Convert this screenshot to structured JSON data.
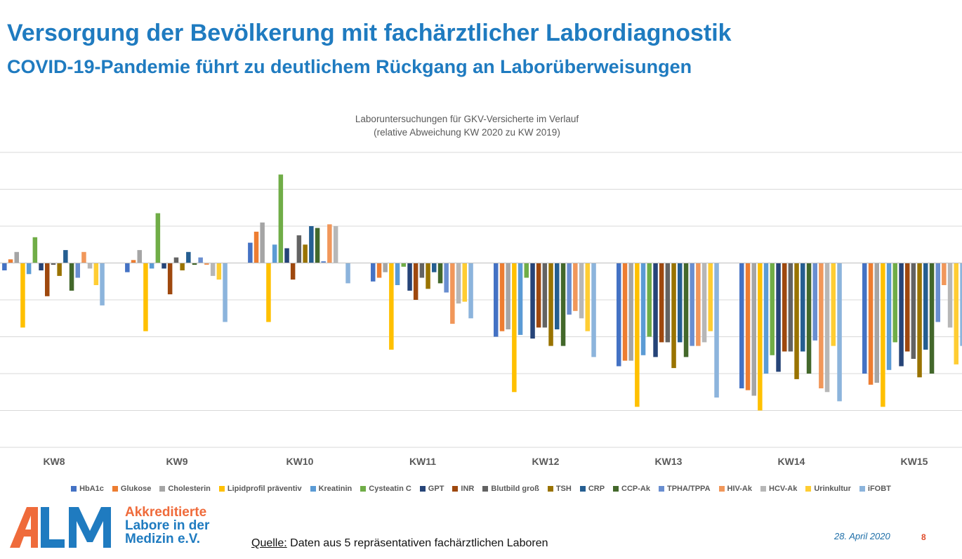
{
  "slide": {
    "title": "Versorgung der Bevölkerung mit fachärztlicher Labordiagnostik",
    "subtitle": "COVID-19-Pandemie führt zu deutlichem Rückgang an Laborüberweisungen"
  },
  "chart_data": {
    "type": "bar",
    "title_line1": "Laboruntersuchungen für GKV-Versicherte im Verlauf",
    "title_line2": "(relative Abweichung KW 2020 zu KW 2019)",
    "categories": [
      "KW8",
      "KW9",
      "KW10",
      "KW11",
      "KW12",
      "KW13",
      "KW14",
      "KW15"
    ],
    "ylim": [
      -50,
      30
    ],
    "gridlines": true,
    "legend_position": "bottom",
    "series": [
      {
        "name": "HbA1c",
        "color": "#4472c4",
        "values": [
          -2,
          -2.5,
          5.5,
          -5,
          -20,
          -28,
          -34,
          -30
        ]
      },
      {
        "name": "Glukose",
        "color": "#ed7d31",
        "values": [
          1,
          0.8,
          8.5,
          -4,
          -18.5,
          -26.5,
          -34.5,
          -33
        ]
      },
      {
        "name": "Cholesterin",
        "color": "#a5a5a5",
        "values": [
          3,
          3.5,
          11,
          -2.5,
          -18,
          -26.5,
          -36,
          -32.5
        ]
      },
      {
        "name": "Lipidprofil präventiv",
        "color": "#ffc000",
        "values": [
          -17.5,
          -18.5,
          -16,
          -23.5,
          -35,
          -39,
          -40,
          -39
        ]
      },
      {
        "name": "Kreatinin",
        "color": "#5b9bd5",
        "values": [
          -3,
          -1.5,
          5,
          -6,
          -19.5,
          -25,
          -30,
          -29
        ]
      },
      {
        "name": "Cysteatin C",
        "color": "#70ad47",
        "values": [
          7,
          13.5,
          24,
          -1,
          -4,
          -20,
          -25,
          -21.5
        ]
      },
      {
        "name": "GPT",
        "color": "#264478",
        "values": [
          -2,
          -1.5,
          4,
          -7.5,
          -20.5,
          -25.5,
          -29.5,
          -28
        ]
      },
      {
        "name": "INR",
        "color": "#9e480e",
        "values": [
          -9,
          -8.5,
          -4.5,
          -10,
          -17.5,
          -21.5,
          -24,
          -24
        ]
      },
      {
        "name": "Blutbild groß",
        "color": "#636363",
        "values": [
          -0.5,
          1.5,
          7.5,
          -4,
          -17.5,
          -21.5,
          -24,
          -26
        ]
      },
      {
        "name": "TSH",
        "color": "#997300",
        "values": [
          -3.5,
          -2,
          5,
          -7,
          -22.5,
          -28.5,
          -31.5,
          -31
        ]
      },
      {
        "name": "CRP",
        "color": "#255e91",
        "values": [
          3.5,
          3,
          10,
          -2.5,
          -18,
          -21.5,
          -24,
          -23.5
        ]
      },
      {
        "name": "CCP-Ak",
        "color": "#43682b",
        "values": [
          -7.5,
          -0.5,
          9.5,
          -5.5,
          -22.5,
          -25.5,
          -30,
          -30
        ]
      },
      {
        "name": "TPHA/TPPA",
        "color": "#698ed0",
        "values": [
          -4,
          1.5,
          0.5,
          -8,
          -14,
          -22.5,
          -21,
          -16
        ]
      },
      {
        "name": "HIV-Ak",
        "color": "#f1975a",
        "values": [
          3,
          -0.5,
          10.5,
          -16.5,
          -13,
          -22.5,
          -34,
          -6
        ]
      },
      {
        "name": "HCV-Ak",
        "color": "#b7b7b7",
        "values": [
          -1.5,
          -3.5,
          10,
          -11,
          -15,
          -21.5,
          -35,
          -17.5
        ]
      },
      {
        "name": "Urinkultur",
        "color": "#ffcd33",
        "values": [
          -6,
          -4.5,
          null,
          -10.5,
          -18.5,
          -18.5,
          -22.5,
          -27.5
        ]
      },
      {
        "name": "iFOBT",
        "color": "#8cb4dc",
        "values": [
          -11.5,
          -16,
          -5.5,
          -15,
          -25.5,
          -36.5,
          -37.5,
          -22.5
        ]
      }
    ]
  },
  "footer": {
    "logo_letters": "ALM",
    "org_line1": "Akkreditierte",
    "org_line2": "Labore in der",
    "org_line3": "Medizin e.V.",
    "source_label": "Quelle:",
    "source_text": " Daten aus 5 repräsentativen fachärztlichen Laboren",
    "date": "28. April 2020",
    "page_number": "8"
  }
}
